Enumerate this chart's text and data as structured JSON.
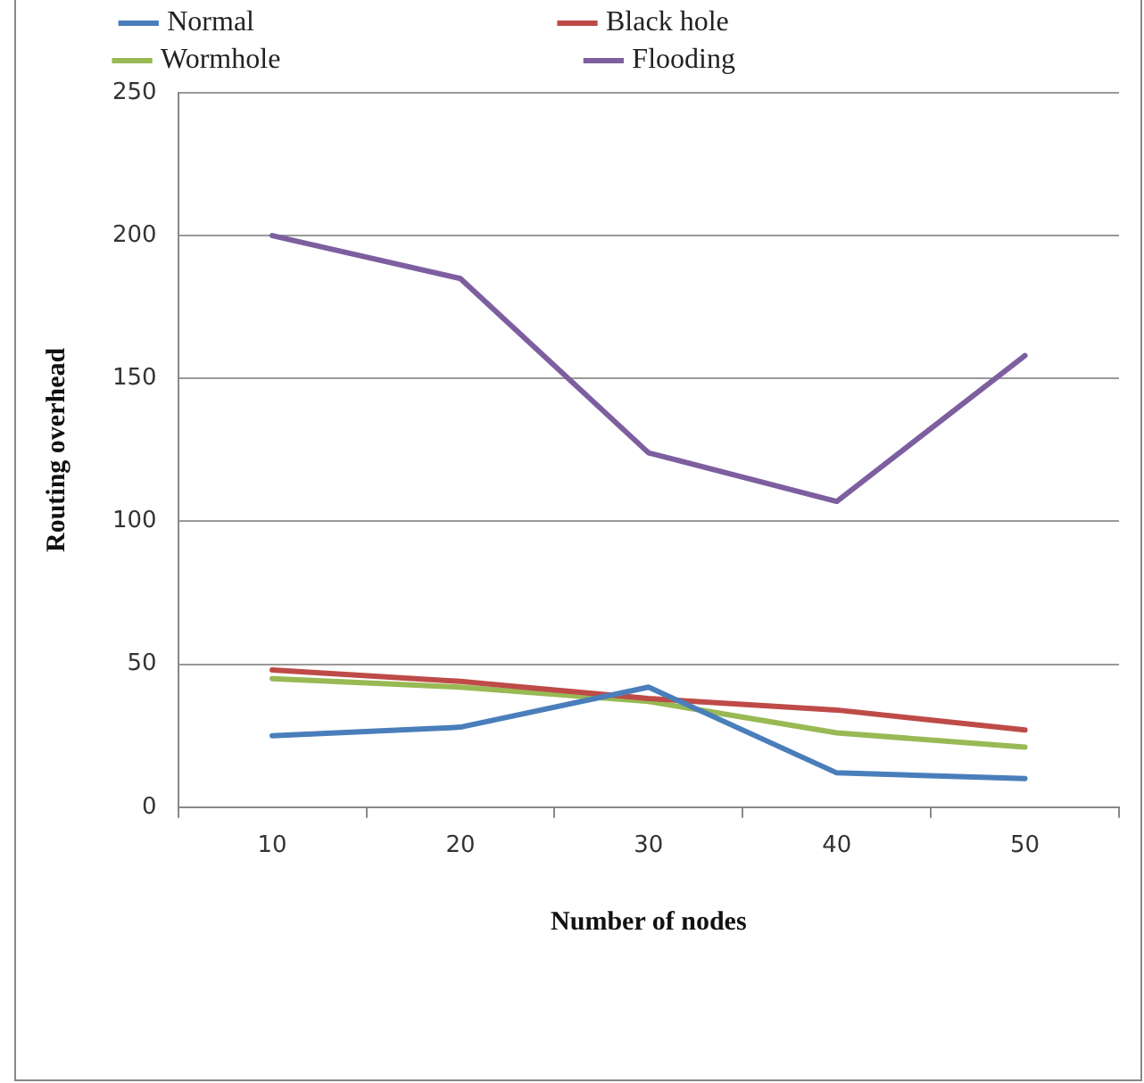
{
  "chart_data": {
    "type": "line",
    "xlabel": "Number of nodes",
    "ylabel": "Routing overhead",
    "categories": [
      "10",
      "20",
      "30",
      "40",
      "50"
    ],
    "series": [
      {
        "name": "Normal",
        "color": "#4a7ebb",
        "values": [
          25,
          28,
          42,
          12,
          10
        ]
      },
      {
        "name": "Black hole",
        "color": "#be4b48",
        "values": [
          48,
          44,
          38,
          34,
          27
        ]
      },
      {
        "name": "Wormhole",
        "color": "#98b954",
        "values": [
          45,
          42,
          37,
          26,
          21
        ]
      },
      {
        "name": "Flooding",
        "color": "#7d5fa0",
        "values": [
          200,
          185,
          124,
          107,
          158
        ]
      }
    ],
    "ylim": [
      0,
      250
    ],
    "yticks": [
      0,
      50,
      100,
      150,
      200,
      250
    ],
    "grid": "y",
    "legend": "top",
    "marker": "none",
    "line_style": "solid"
  }
}
